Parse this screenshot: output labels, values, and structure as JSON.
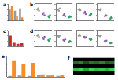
{
  "chart_data": [
    {
      "type": "bar",
      "title": "a",
      "categories": [
        null,
        null,
        null
      ],
      "series": [
        {
          "color": "#999999",
          "values": [
            1.0,
            0.9,
            1.1
          ]
        },
        {
          "color": "#f28e2b",
          "values": [
            1.3,
            0.4,
            0.3
          ]
        }
      ],
      "ylim": [
        0,
        1.5
      ],
      "yticks": [
        0,
        0.5,
        1,
        1.5
      ],
      "tick_labels": false
    },
    {
      "type": "scatter",
      "title": "b",
      "series": [
        {
          "color": "#999999",
          "x": [
            -0.15,
            0,
            0.15
          ],
          "values": [
            1.0,
            1.1,
            0.9
          ]
        },
        {
          "color": "#9b59b6",
          "x": [
            0.85,
            1,
            1.15
          ],
          "values": [
            0.6,
            0.7,
            0.5
          ]
        },
        {
          "color": "#2ca25f",
          "x": [
            1.85,
            2,
            2.15
          ],
          "values": [
            0.4,
            0.3,
            0.5
          ]
        }
      ],
      "xlim": [
        -0.5,
        2.5
      ],
      "ylim": [
        0,
        1.5
      ],
      "yticks": [
        0,
        0.5,
        1,
        1.5
      ],
      "tick_labels": false
    },
    {
      "type": "scatter",
      "series": [
        {
          "color": "#999999",
          "x": [
            -0.15,
            0,
            0.15
          ],
          "values": [
            1.0,
            0.9,
            1.1
          ]
        },
        {
          "color": "#9b59b6",
          "x": [
            0.85,
            1,
            1.15
          ],
          "values": [
            0.5,
            0.6,
            0.4
          ]
        },
        {
          "color": "#2ca25f",
          "x": [
            1.85,
            2,
            2.15
          ],
          "values": [
            0.3,
            0.4,
            0.35
          ]
        }
      ],
      "xlim": [
        -0.5,
        2.5
      ],
      "ylim": [
        0,
        1.5
      ],
      "yticks": [
        0,
        0.5,
        1,
        1.5
      ],
      "tick_labels": false
    },
    {
      "type": "scatter",
      "series": [
        {
          "color": "#999999",
          "x": [
            -0.15,
            0,
            0.15
          ],
          "values": [
            1.0,
            1.05,
            0.95
          ]
        },
        {
          "color": "#9b59b6",
          "x": [
            0.85,
            1,
            1.15
          ],
          "values": [
            0.7,
            0.8,
            0.6
          ]
        },
        {
          "color": "#2ca25f",
          "x": [
            1.85,
            2,
            2.15
          ],
          "values": [
            0.5,
            0.45,
            0.6
          ]
        }
      ],
      "xlim": [
        -0.5,
        2.5
      ],
      "ylim": [
        0,
        1.5
      ],
      "yticks": [
        0,
        0.5,
        1,
        1.5
      ],
      "tick_labels": false
    },
    {
      "type": "scatter",
      "series": [
        {
          "color": "#999999",
          "x": [
            -0.15,
            0,
            0.15
          ],
          "values": [
            1.0,
            0.95,
            1.05
          ]
        },
        {
          "color": "#9b59b6",
          "x": [
            0.85,
            1,
            1.15
          ],
          "values": [
            0.4,
            0.5,
            0.45
          ]
        },
        {
          "color": "#2ca25f",
          "x": [
            1.85,
            2,
            2.15
          ],
          "values": [
            0.2,
            0.3,
            0.25
          ]
        }
      ],
      "xlim": [
        -0.5,
        2.5
      ],
      "ylim": [
        0,
        1.5
      ],
      "yticks": [
        0,
        0.5,
        1,
        1.5
      ],
      "tick_labels": false
    },
    {
      "type": "bar",
      "title": "c",
      "categories": [
        null,
        null,
        null,
        null
      ],
      "series": [
        {
          "color": "#d62728",
          "values": [
            1.0,
            0.35,
            0.25,
            0.3
          ]
        }
      ],
      "ylim": [
        0,
        1.5
      ],
      "yticks": [
        0,
        0.5,
        1,
        1.5
      ],
      "tick_labels": false
    },
    {
      "type": "scatter",
      "title": "d",
      "series": [
        {
          "color": "#999999",
          "x": [
            -0.15,
            0,
            0.15
          ],
          "values": [
            1.0,
            1.1,
            0.9
          ]
        },
        {
          "color": "#9b59b6",
          "x": [
            0.85,
            1,
            1.15
          ],
          "values": [
            0.8,
            0.7,
            0.9
          ]
        },
        {
          "color": "#2ca25f",
          "x": [
            1.85,
            2,
            2.15
          ],
          "values": [
            0.6,
            0.5,
            0.7
          ]
        }
      ],
      "xlim": [
        -0.5,
        2.5
      ],
      "ylim": [
        0,
        1.5
      ],
      "yticks": [
        0,
        0.5,
        1,
        1.5
      ],
      "tick_labels": false
    },
    {
      "type": "scatter",
      "series": [
        {
          "color": "#999999",
          "x": [
            -0.15,
            0,
            0.15
          ],
          "values": [
            1.0,
            0.9,
            1.0
          ]
        },
        {
          "color": "#9b59b6",
          "x": [
            0.85,
            1,
            1.15
          ],
          "values": [
            0.6,
            0.55,
            0.65
          ]
        },
        {
          "color": "#2ca25f",
          "x": [
            1.85,
            2,
            2.15
          ],
          "values": [
            0.4,
            0.5,
            0.45
          ]
        }
      ],
      "xlim": [
        -0.5,
        2.5
      ],
      "ylim": [
        0,
        1.5
      ],
      "yticks": [
        0,
        0.5,
        1,
        1.5
      ],
      "tick_labels": false
    },
    {
      "type": "scatter",
      "series": [
        {
          "color": "#999999",
          "x": [
            -0.15,
            0,
            0.15
          ],
          "values": [
            1.0,
            1.1,
            1.0
          ]
        },
        {
          "color": "#9b59b6",
          "x": [
            0.85,
            1,
            1.15
          ],
          "values": [
            0.9,
            0.8,
            0.85
          ]
        },
        {
          "color": "#2ca25f",
          "x": [
            1.85,
            2,
            2.15
          ],
          "values": [
            0.7,
            0.6,
            0.65
          ]
        }
      ],
      "xlim": [
        -0.5,
        2.5
      ],
      "ylim": [
        0,
        1.5
      ],
      "yticks": [
        0,
        0.5,
        1,
        1.5
      ],
      "tick_labels": false
    },
    {
      "type": "scatter",
      "series": [
        {
          "color": "#999999",
          "x": [
            -0.15,
            0,
            0.15
          ],
          "values": [
            1.0,
            0.95,
            1.05
          ]
        },
        {
          "color": "#9b59b6",
          "x": [
            0.85,
            1,
            1.15
          ],
          "values": [
            0.5,
            0.45,
            0.55
          ]
        },
        {
          "color": "#2ca25f",
          "x": [
            1.85,
            2,
            2.15
          ],
          "values": [
            0.3,
            0.35,
            0.3
          ]
        }
      ],
      "xlim": [
        -0.5,
        2.5
      ],
      "ylim": [
        0,
        1.5
      ],
      "yticks": [
        0,
        0.5,
        1,
        1.5
      ],
      "tick_labels": false
    },
    {
      "type": "bar",
      "title": "e",
      "categories": [
        null,
        null,
        null,
        null,
        null,
        null
      ],
      "series": [
        {
          "color": "#999999",
          "values": [
            2,
            3,
            2,
            4,
            3,
            2
          ]
        },
        {
          "color": "#f28e2b",
          "values": [
            38,
            30,
            34,
            6,
            5,
            4
          ]
        }
      ],
      "ylim": [
        0,
        50
      ],
      "yticks": [
        0,
        10,
        20,
        30,
        40,
        50
      ],
      "tick_labels": false
    },
    {
      "type": "heatmap",
      "title": "f",
      "color": "#39d353",
      "cells": [
        [
          0.1,
          0.1,
          0.1,
          0.1,
          0.1,
          0.1,
          0.1,
          0.1
        ],
        [
          0.8,
          0.9,
          0.7,
          0.9,
          0.8,
          0.85,
          0.75,
          0.9
        ],
        [
          0.1,
          0.1,
          0.1,
          0.1,
          0.1,
          0.1,
          0.1,
          0.1
        ],
        [
          0.5,
          0.6,
          0.4,
          0.55,
          0.5,
          0.6,
          0.45,
          0.5
        ],
        [
          0.1,
          0.1,
          0.1,
          0.1,
          0.1,
          0.1,
          0.1,
          0.1
        ]
      ],
      "tick_labels": false
    }
  ]
}
